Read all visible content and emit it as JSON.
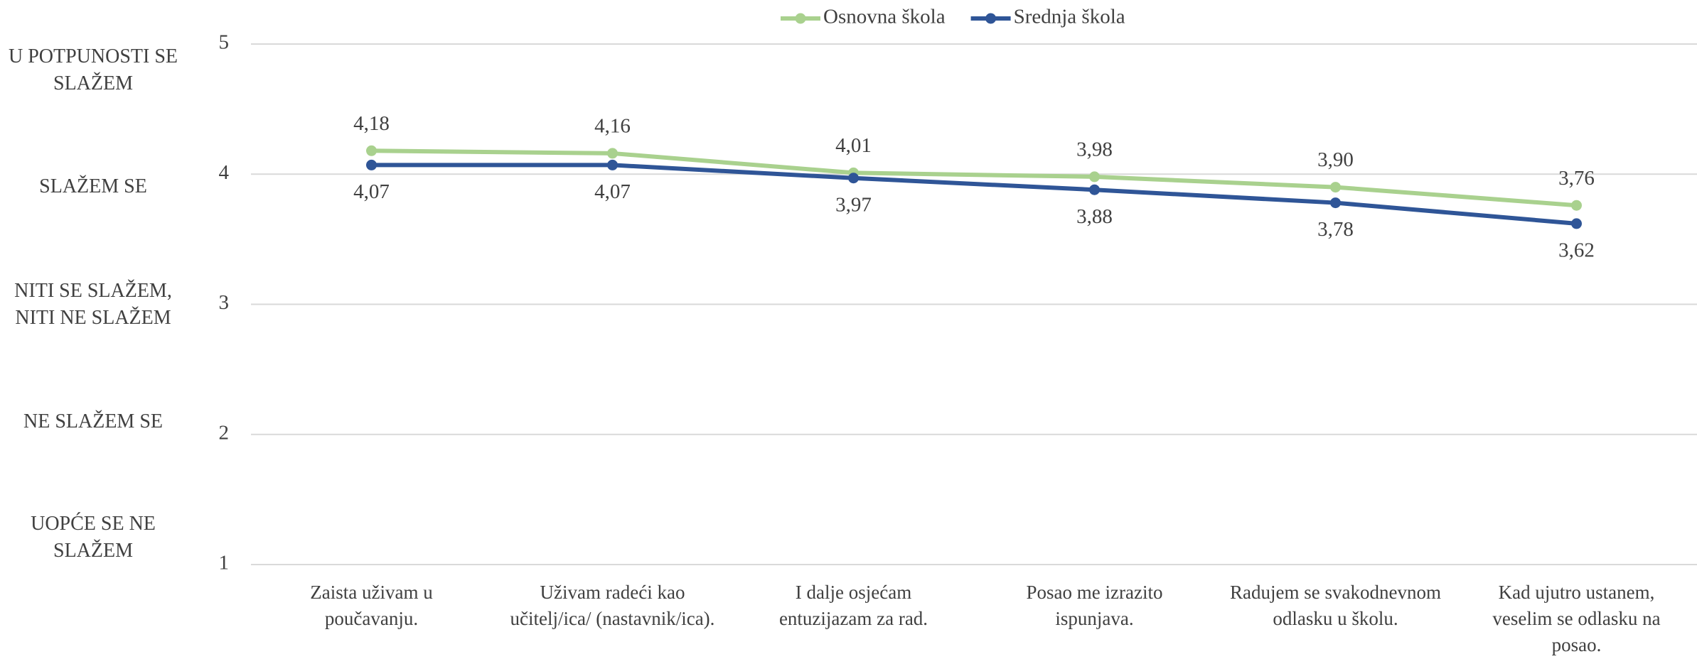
{
  "chart_data": {
    "type": "line",
    "categories": [
      "Zaista uživam u poučavanju.",
      "Uživam radeći kao učitelj/ica/ (nastavnik/ica).",
      "I dalje osjećam entuzijazam za rad.",
      "Posao me izrazito ispunjava.",
      "Radujem se svakodnevnom odlasku u školu.",
      "Kad ujutro ustanem, veselim se odlasku na posao."
    ],
    "series": [
      {
        "name": "Osnovna škola",
        "color": "#a9d18e",
        "values": [
          4.18,
          4.16,
          4.01,
          3.98,
          3.9,
          3.76
        ],
        "value_labels": [
          "4,18",
          "4,16",
          "4,01",
          "3,98",
          "3,90",
          "3,76"
        ]
      },
      {
        "name": "Srednja škola",
        "color": "#2f5597",
        "values": [
          4.07,
          4.07,
          3.97,
          3.88,
          3.78,
          3.62
        ],
        "value_labels": [
          "4,07",
          "4,07",
          "3,97",
          "3,88",
          "3,78",
          "3,62"
        ]
      }
    ],
    "ylim": [
      1,
      5
    ],
    "yticks": [
      1,
      2,
      3,
      4,
      5
    ],
    "scale_labels": [
      "U POTPUNOSTI SE SLAŽEM",
      "SLAŽEM SE",
      "NITI SE SLAŽEM, NITI NE SLAŽEM",
      "NE SLAŽEM SE",
      "UOPĆE SE NE SLAŽEM"
    ],
    "grid": true,
    "legend": "top"
  }
}
